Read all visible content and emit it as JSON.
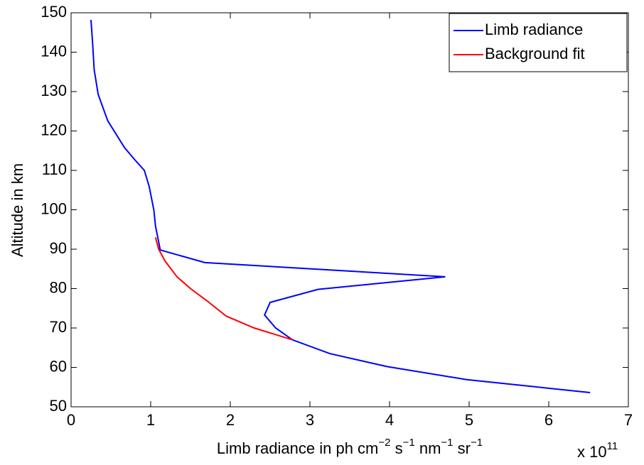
{
  "chart_data": {
    "type": "line",
    "xlabel": [
      "Limb radiance in ph cm",
      "−2",
      " s",
      "−1",
      " nm",
      "−1",
      " sr",
      "−1"
    ],
    "x_scale": [
      "x 10",
      "11"
    ],
    "ylabel": "Altitude in km",
    "xlim": [
      0,
      7
    ],
    "xticks": [
      0,
      1,
      2,
      3,
      4,
      5,
      6,
      7
    ],
    "ylim": [
      50,
      150
    ],
    "yticks": [
      50,
      60,
      70,
      80,
      90,
      100,
      110,
      120,
      130,
      140,
      150
    ],
    "legend": "upper right",
    "series": [
      {
        "name": "Limb radiance",
        "color": "#0000ff",
        "x": [
          0.25,
          0.27,
          0.29,
          0.34,
          0.46,
          0.67,
          0.8,
          0.92,
          0.98,
          1.04,
          1.06,
          1.12,
          1.68,
          4.7,
          3.1,
          2.5,
          2.43,
          2.57,
          2.78,
          3.25,
          3.97,
          4.97,
          6.52
        ],
        "values": [
          148.2,
          142.4,
          135.6,
          129.3,
          122.6,
          115.8,
          112.7,
          110.0,
          106.0,
          99.9,
          95.9,
          89.8,
          86.6,
          83.0,
          79.8,
          76.5,
          73.3,
          70.0,
          67.0,
          63.5,
          60.2,
          56.9,
          53.6
        ]
      },
      {
        "name": "Background fit",
        "color": "#ff0000",
        "x": [
          1.06,
          1.1,
          1.18,
          1.33,
          1.5,
          1.7,
          1.95,
          2.3,
          2.78
        ],
        "values": [
          93.0,
          90.0,
          87.0,
          83.0,
          80.0,
          77.0,
          73.0,
          70.0,
          67.0
        ]
      }
    ]
  }
}
